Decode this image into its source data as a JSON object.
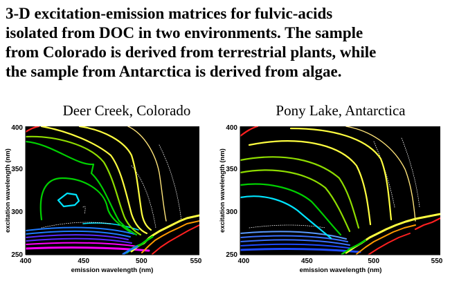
{
  "heading": {
    "lines": [
      "3-D excitation-emission matrices for fulvic-acids",
      "isolated from DOC in two environments.  The sample",
      "from Colorado is derived from terrestrial plants, while",
      "the sample from Antarctica is derived from algae."
    ]
  },
  "colors": {
    "background": "#000000",
    "contours": [
      "#ff00ff",
      "#5a2cff",
      "#1f7aff",
      "#00e5ff",
      "#00d000",
      "#8edc00",
      "#ffff40",
      "#ffe57a",
      "#ff2020"
    ]
  },
  "chart_data": [
    {
      "type": "contour",
      "title": "Deer Creek, Colorado",
      "xlabel": "emission wavelength (nm)",
      "ylabel": "excitation wavelength (nm)",
      "xlim": [
        400,
        550
      ],
      "ylim": [
        250,
        400
      ],
      "xticks": [
        400,
        450,
        500,
        550
      ],
      "yticks": [
        250,
        300,
        350,
        400
      ],
      "peak": {
        "emission": 441,
        "excitation": 317
      },
      "contour_colors": [
        "#00e5ff",
        "#00d000",
        "#8edc00",
        "#ffff40",
        "#ffe57a",
        "#ff2020"
      ]
    },
    {
      "type": "contour",
      "title": "Pony Lake, Antarctica",
      "xlabel": "emission wavelength (nm)",
      "ylabel": "excitation wavelength (nm)",
      "xlim": [
        400,
        550
      ],
      "ylim": [
        250,
        400
      ],
      "xticks": [
        400,
        450,
        500,
        550
      ],
      "yticks": [
        250,
        300,
        350,
        400
      ],
      "peak": {
        "emission": 431,
        "excitation": 303
      },
      "contour_colors": [
        "#00e5ff",
        "#00d000",
        "#8edc00",
        "#ffff40",
        "#ffe57a",
        "#ff2020"
      ]
    }
  ]
}
